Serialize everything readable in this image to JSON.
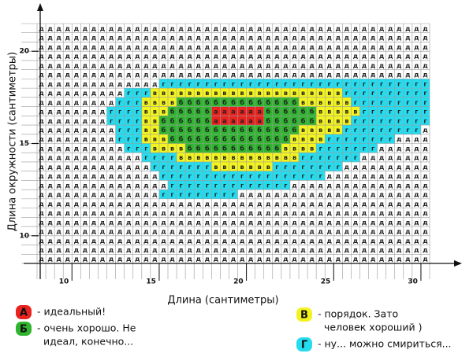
{
  "chart_data": {
    "type": "letter-grid",
    "x_label": "Длина (сантиметры)",
    "y_label": "Длина окружности (сантиметры)",
    "xlim": [
      8,
      30.5
    ],
    "ylim": [
      8.5,
      21.5
    ],
    "xticks": [
      10,
      15,
      20,
      25,
      30
    ],
    "yticks": [
      10,
      15,
      20
    ],
    "rows": [
      "ддддддддддддддддддддддддддддддддддддддддддддд",
      "ддддддддддддддддддддддддддддддддддддддддддддд",
      "ддддддддддддддддддддддддддддддддддддддддддддд",
      "ддддддддддддддддддддддддддддддддддддддддддддд",
      "ддддддддддддддддддддддддддддддддддддддддддддд",
      "ддддддддддддддддддддддддддддддддддддддддддддд",
      "ддддддддддддддггггггггггггггггггггггггггггггг",
      "ддддддддддгггввввввввввввввввввввввгггггггггг",
      "дддддддддгггввввббббббббббббббввввввггггггггг",
      "ддддддддггггвввбббббааааааббббббвввввгггггггг",
      "ддддддддггггввббббббааааааббббббввввггггггггг",
      "дддддддддгггввббббббббббббббббвввввгггггггггд",
      "дддддддддгггвввббббббббббббббввввггггггггдддд",
      "ддддддддддгггввввбббббббббббввввгггггггдддддд",
      "ддддддддддддггггввввввввввввввгггггггдддддддд",
      "дддддддддддддгггггггвввввввггггггггдддддддддд",
      "ддддддддддддддгггггггггггггггггггдддддддддддд",
      "дддддддддддддддггггггггггггггдддддддддддддддд",
      "ддддддддддддддгггггггггдддддддддддддддддддддд",
      "ддддддддддддддддддддддддддддддддддддддддддддд",
      "ддддддддддддддддддддддддддддддддддддддддддддд",
      "ддддддддддддддддддддддддддддддддддддддддддддд",
      "ддддддддддддддддддддддддддддддддддддддддддддд",
      "ддддддддддддддддддддддддддддддддддддддддддддд",
      "ддддддддддддддддддддддддддддддддддддддддддддд",
      "ддддддддддддддддддддддддддддддддддддддддддддд"
    ],
    "legend": [
      {
        "letter": "А",
        "color": "#e8221e",
        "lines": [
          "- идеальный!"
        ]
      },
      {
        "letter": "Б",
        "color": "#2fb52f",
        "lines": [
          "- очень хорошо. Не",
          "идеал, конечно..."
        ]
      },
      {
        "letter": "В",
        "color": "#f3f320",
        "lines": [
          "- порядок. Зато",
          "человек хороший )"
        ]
      },
      {
        "letter": "Г",
        "color": "#25dcef",
        "lines": [
          "- ну... можно смириться..."
        ]
      }
    ]
  }
}
